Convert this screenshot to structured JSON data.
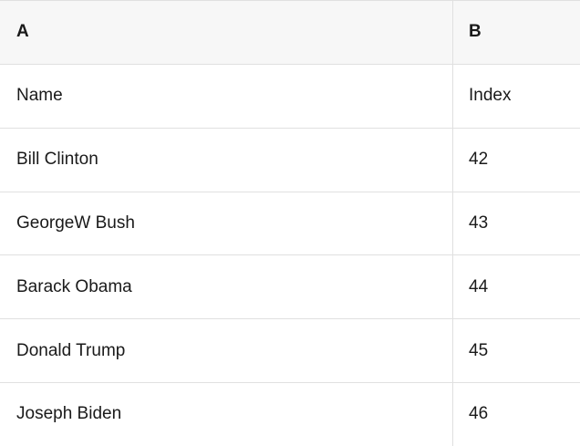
{
  "table": {
    "column_headers": [
      "A",
      "B"
    ],
    "rows": [
      [
        "Name",
        "Index"
      ],
      [
        "Bill Clinton",
        "42"
      ],
      [
        "GeorgeW Bush",
        "43"
      ],
      [
        "Barack Obama",
        "44"
      ],
      [
        "Donald Trump",
        "45"
      ],
      [
        "Joseph Biden",
        "46"
      ]
    ]
  },
  "colors": {
    "header_background": "#f7f7f7",
    "border": "#e0e0e0",
    "text": "#1a1a1a",
    "row_background": "#ffffff"
  }
}
